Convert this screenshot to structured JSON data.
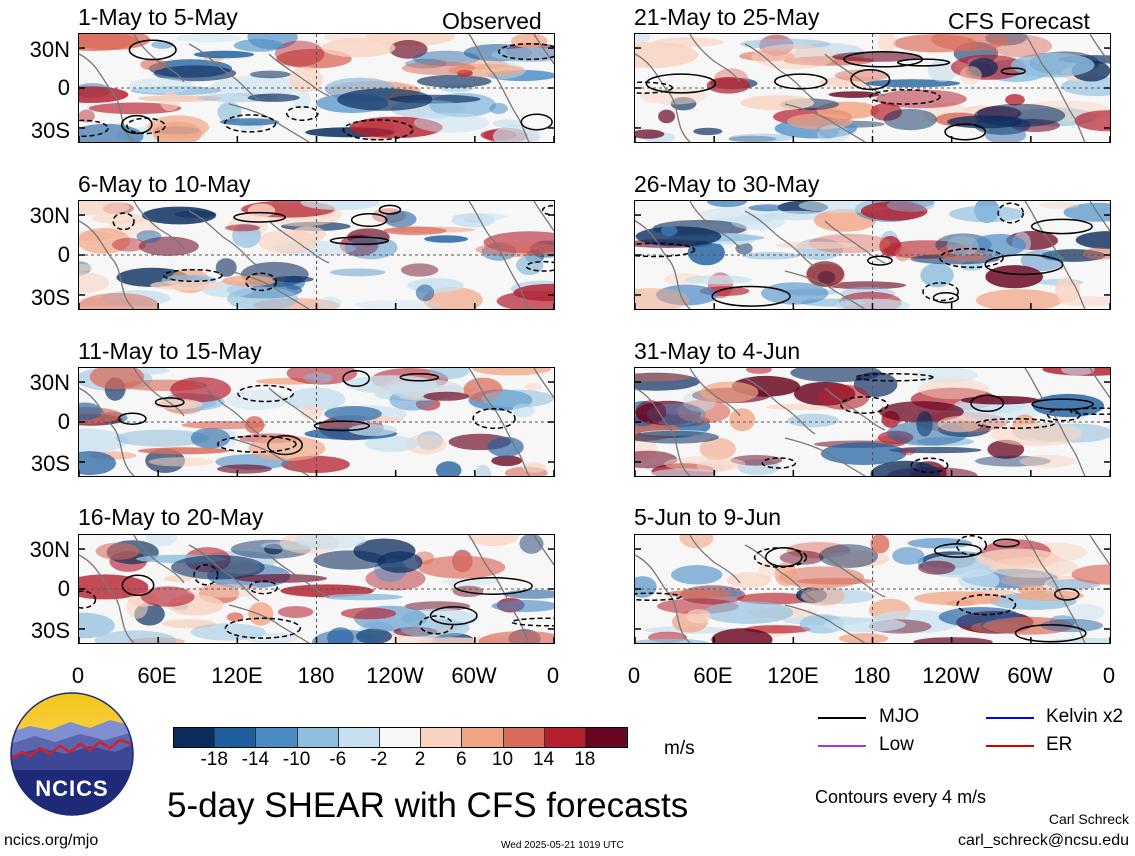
{
  "left_label": "Observed",
  "right_label": "CFS Forecast",
  "panels": [
    {
      "title": "1-May to 5-May",
      "seed": 3
    },
    {
      "title": "21-May to 25-May",
      "seed": 11
    },
    {
      "title": "6-May to 10-May",
      "seed": 7
    },
    {
      "title": "26-May to 30-May",
      "seed": 17
    },
    {
      "title": "11-May to 15-May",
      "seed": 23
    },
    {
      "title": "31-May to 4-Jun",
      "seed": 29
    },
    {
      "title": "16-May to 20-May",
      "seed": 31
    },
    {
      "title": "5-Jun to 9-Jun",
      "seed": 41
    }
  ],
  "y_ticks": [
    "30N",
    "0",
    "30S"
  ],
  "x_ticks": [
    "0",
    "60E",
    "120E",
    "180",
    "120W",
    "60W",
    "0"
  ],
  "colorbar": {
    "colors": [
      "#0b2d5e",
      "#1f5fa0",
      "#4a8cc6",
      "#8ebedf",
      "#c7e0ef",
      "#f7f7f7",
      "#f9d3c0",
      "#f1a585",
      "#da6b59",
      "#b51f2e",
      "#6a0621"
    ],
    "labels": [
      "-18",
      "-14",
      "-10",
      "-6",
      "-2",
      "2",
      "6",
      "10",
      "14",
      "18"
    ],
    "units": "m/s"
  },
  "legend": {
    "mjo": "MJO",
    "kelvin": "Kelvin x2",
    "low": "Low",
    "er": "ER",
    "colors": {
      "mjo": "#000000",
      "kelvin": "#0000ff",
      "low": "#9933ff",
      "er": "#cc0000"
    }
  },
  "logo_text": "NCICS",
  "main_title": "5-day SHEAR with CFS forecasts",
  "contours_note": "Contours every 4 m/s",
  "author": "Carl Schreck",
  "email": "carl_schreck@ncsu.edu",
  "website": "ncics.org/mjo",
  "timestamp": "Wed 2025-05-21 1019 UTC"
}
